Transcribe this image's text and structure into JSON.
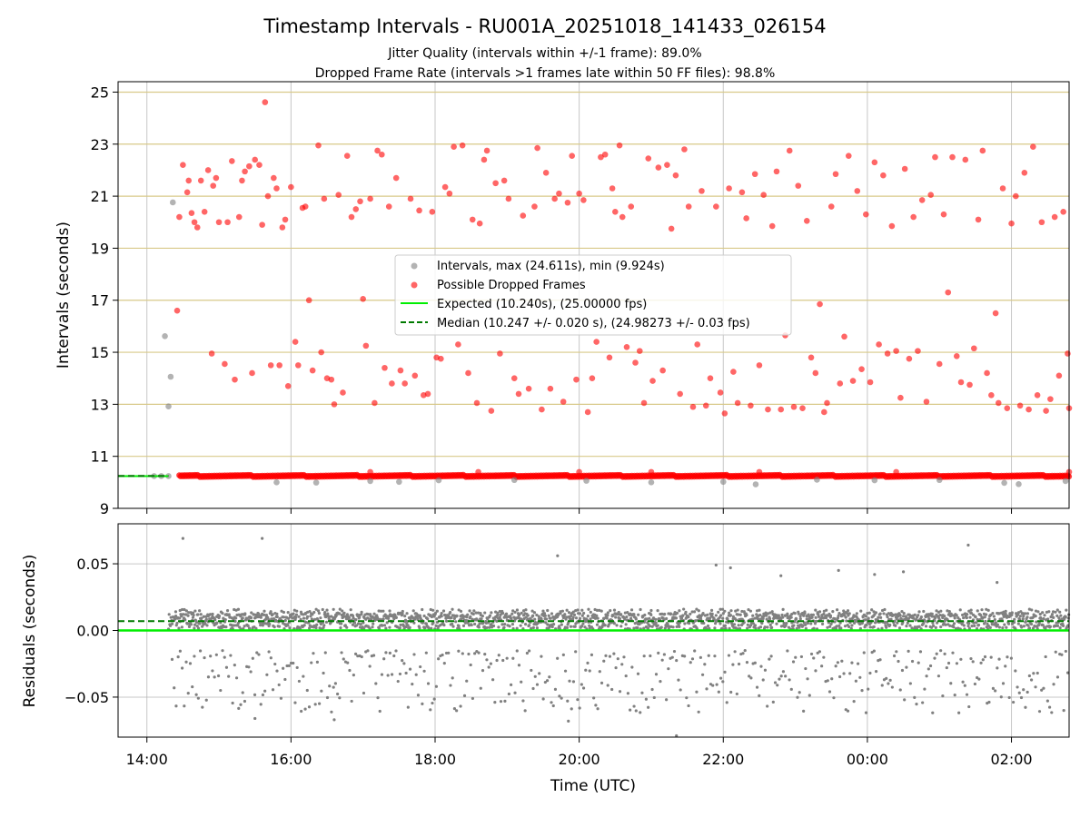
{
  "figure": {
    "title": "Timestamp Intervals - RU001A_20251018_141433_026154",
    "subtitle_1": "Jitter Quality (intervals within +/-1 frame): 89.0%",
    "subtitle_2": "Dropped Frame Rate (intervals >1 frames late within 50 FF files): 98.8%"
  },
  "chart_data": [
    {
      "type": "scatter",
      "panel": "intervals",
      "ylabel": "Intervals (seconds)",
      "ylim": [
        9,
        25.4
      ],
      "yticks": [
        9,
        11,
        13,
        15,
        17,
        19,
        21,
        23,
        25
      ],
      "xlim_hours": [
        13.6,
        26.8
      ],
      "grid": true,
      "legend_position": "center",
      "colors": {
        "intervals": "#808080",
        "dropped": "#ff0000",
        "expected": "#00ee00",
        "median": "#007a00",
        "gridline": "#d8c989"
      },
      "series": [
        {
          "name": "Intervals, max (24.611s), min (9.924s)",
          "max": 24.611,
          "min": 9.924,
          "points": [
            [
              14.25,
              15.62
            ],
            [
              14.3,
              12.92
            ],
            [
              14.33,
              14.06
            ],
            [
              14.36,
              20.76
            ],
            [
              14.3,
              10.24
            ],
            [
              14.2,
              10.24
            ],
            [
              14.1,
              10.24
            ],
            [
              15.8,
              10.0
            ],
            [
              16.35,
              9.99
            ],
            [
              17.1,
              10.05
            ],
            [
              17.5,
              10.02
            ],
            [
              18.05,
              10.08
            ],
            [
              19.1,
              10.09
            ],
            [
              20.1,
              10.06
            ],
            [
              21.0,
              10.0
            ],
            [
              22.0,
              10.02
            ],
            [
              22.45,
              9.924
            ],
            [
              23.3,
              10.1
            ],
            [
              24.1,
              10.08
            ],
            [
              25.0,
              10.09
            ],
            [
              25.9,
              9.98
            ],
            [
              26.1,
              9.93
            ],
            [
              26.75,
              10.05
            ]
          ]
        },
        {
          "name": "Possible Dropped Frames",
          "points": [
            [
              14.42,
              16.6
            ],
            [
              14.45,
              20.2
            ],
            [
              14.5,
              22.2
            ],
            [
              14.56,
              21.15
            ],
            [
              14.58,
              21.6
            ],
            [
              14.62,
              20.35
            ],
            [
              14.66,
              20.0
            ],
            [
              14.7,
              19.8
            ],
            [
              14.75,
              21.6
            ],
            [
              14.8,
              20.4
            ],
            [
              14.85,
              22.0
            ],
            [
              14.9,
              14.95
            ],
            [
              14.92,
              21.4
            ],
            [
              14.96,
              21.7
            ],
            [
              15.0,
              20.0
            ],
            [
              15.08,
              14.55
            ],
            [
              15.12,
              20.0
            ],
            [
              15.18,
              22.35
            ],
            [
              15.22,
              13.95
            ],
            [
              15.28,
              20.2
            ],
            [
              15.32,
              21.6
            ],
            [
              15.36,
              21.95
            ],
            [
              15.42,
              22.15
            ],
            [
              15.46,
              14.2
            ],
            [
              15.5,
              22.4
            ],
            [
              15.56,
              22.2
            ],
            [
              15.6,
              19.9
            ],
            [
              15.64,
              24.611
            ],
            [
              15.68,
              21.0
            ],
            [
              15.72,
              14.5
            ],
            [
              15.76,
              21.7
            ],
            [
              15.8,
              21.3
            ],
            [
              15.84,
              14.5
            ],
            [
              15.88,
              19.8
            ],
            [
              15.92,
              20.1
            ],
            [
              15.96,
              13.7
            ],
            [
              16.0,
              21.35
            ],
            [
              16.06,
              15.4
            ],
            [
              16.1,
              14.5
            ],
            [
              16.16,
              20.55
            ],
            [
              16.2,
              20.6
            ],
            [
              16.25,
              17.0
            ],
            [
              16.3,
              14.3
            ],
            [
              16.38,
              22.95
            ],
            [
              16.42,
              15.0
            ],
            [
              16.46,
              20.9
            ],
            [
              16.5,
              14.0
            ],
            [
              16.56,
              13.95
            ],
            [
              16.6,
              13.0
            ],
            [
              16.66,
              21.05
            ],
            [
              16.72,
              13.45
            ],
            [
              16.78,
              22.55
            ],
            [
              16.84,
              20.2
            ],
            [
              16.9,
              20.5
            ],
            [
              16.96,
              20.8
            ],
            [
              17.0,
              17.05
            ],
            [
              17.04,
              15.25
            ],
            [
              17.1,
              20.9
            ],
            [
              17.16,
              13.05
            ],
            [
              17.2,
              22.75
            ],
            [
              17.26,
              22.6
            ],
            [
              17.3,
              14.4
            ],
            [
              17.36,
              20.6
            ],
            [
              17.4,
              13.8
            ],
            [
              17.46,
              21.7
            ],
            [
              17.52,
              14.3
            ],
            [
              17.58,
              13.8
            ],
            [
              17.66,
              20.9
            ],
            [
              17.72,
              14.1
            ],
            [
              17.78,
              20.45
            ],
            [
              17.84,
              13.35
            ],
            [
              17.9,
              13.4
            ],
            [
              17.96,
              20.4
            ],
            [
              18.02,
              14.8
            ],
            [
              18.08,
              14.75
            ],
            [
              18.14,
              21.35
            ],
            [
              18.2,
              21.1
            ],
            [
              18.26,
              22.9
            ],
            [
              18.32,
              15.3
            ],
            [
              18.38,
              22.95
            ],
            [
              18.46,
              14.2
            ],
            [
              18.52,
              20.1
            ],
            [
              18.58,
              13.05
            ],
            [
              18.62,
              19.95
            ],
            [
              18.68,
              22.4
            ],
            [
              18.72,
              22.75
            ],
            [
              18.78,
              12.75
            ],
            [
              18.84,
              21.5
            ],
            [
              18.9,
              14.95
            ],
            [
              18.96,
              21.6
            ],
            [
              19.02,
              20.9
            ],
            [
              19.1,
              14.0
            ],
            [
              19.16,
              13.4
            ],
            [
              19.22,
              20.25
            ],
            [
              19.3,
              13.6
            ],
            [
              19.38,
              20.6
            ],
            [
              19.42,
              22.85
            ],
            [
              19.48,
              12.8
            ],
            [
              19.54,
              21.9
            ],
            [
              19.6,
              13.6
            ],
            [
              19.66,
              20.9
            ],
            [
              19.72,
              21.1
            ],
            [
              19.78,
              13.1
            ],
            [
              19.84,
              20.75
            ],
            [
              19.9,
              22.55
            ],
            [
              19.96,
              13.95
            ],
            [
              20.0,
              21.1
            ],
            [
              20.06,
              20.85
            ],
            [
              20.12,
              12.7
            ],
            [
              20.18,
              14.0
            ],
            [
              20.24,
              15.4
            ],
            [
              20.3,
              22.5
            ],
            [
              20.36,
              22.6
            ],
            [
              20.42,
              14.8
            ],
            [
              20.46,
              21.3
            ],
            [
              20.5,
              20.4
            ],
            [
              20.56,
              22.95
            ],
            [
              20.6,
              20.2
            ],
            [
              20.66,
              15.2
            ],
            [
              20.72,
              20.6
            ],
            [
              20.78,
              14.6
            ],
            [
              20.84,
              15.05
            ],
            [
              20.9,
              13.05
            ],
            [
              20.96,
              22.45
            ],
            [
              21.02,
              13.9
            ],
            [
              21.1,
              22.1
            ],
            [
              21.16,
              14.3
            ],
            [
              21.22,
              22.2
            ],
            [
              21.28,
              19.75
            ],
            [
              21.34,
              21.8
            ],
            [
              21.4,
              13.4
            ],
            [
              21.46,
              22.8
            ],
            [
              21.52,
              20.6
            ],
            [
              21.58,
              12.9
            ],
            [
              21.64,
              15.3
            ],
            [
              21.7,
              21.2
            ],
            [
              21.76,
              12.95
            ],
            [
              21.82,
              14.0
            ],
            [
              21.9,
              20.6
            ],
            [
              21.96,
              13.45
            ],
            [
              22.02,
              12.65
            ],
            [
              22.08,
              21.3
            ],
            [
              22.14,
              14.25
            ],
            [
              22.2,
              13.05
            ],
            [
              22.26,
              21.15
            ],
            [
              22.32,
              20.15
            ],
            [
              22.38,
              12.95
            ],
            [
              22.44,
              21.85
            ],
            [
              22.5,
              14.5
            ],
            [
              22.56,
              21.05
            ],
            [
              22.62,
              12.8
            ],
            [
              22.68,
              19.85
            ],
            [
              22.74,
              21.95
            ],
            [
              22.8,
              12.8
            ],
            [
              22.86,
              15.65
            ],
            [
              22.92,
              22.75
            ],
            [
              22.98,
              12.9
            ],
            [
              23.04,
              21.4
            ],
            [
              23.1,
              12.85
            ],
            [
              23.16,
              20.05
            ],
            [
              23.22,
              14.8
            ],
            [
              23.28,
              14.2
            ],
            [
              23.34,
              16.85
            ],
            [
              23.4,
              12.7
            ],
            [
              23.44,
              13.05
            ],
            [
              23.5,
              20.6
            ],
            [
              23.56,
              21.85
            ],
            [
              23.62,
              13.8
            ],
            [
              23.68,
              15.6
            ],
            [
              23.74,
              22.55
            ],
            [
              23.8,
              13.9
            ],
            [
              23.86,
              21.2
            ],
            [
              23.92,
              14.35
            ],
            [
              23.98,
              20.3
            ],
            [
              24.04,
              13.85
            ],
            [
              24.1,
              22.3
            ],
            [
              24.16,
              15.3
            ],
            [
              24.22,
              21.8
            ],
            [
              24.28,
              14.95
            ],
            [
              24.34,
              19.85
            ],
            [
              24.4,
              15.05
            ],
            [
              24.46,
              13.25
            ],
            [
              24.52,
              22.05
            ],
            [
              24.58,
              14.75
            ],
            [
              24.64,
              20.2
            ],
            [
              24.7,
              15.05
            ],
            [
              24.76,
              20.85
            ],
            [
              24.82,
              13.1
            ],
            [
              24.88,
              21.05
            ],
            [
              24.94,
              22.5
            ],
            [
              25.0,
              14.55
            ],
            [
              25.06,
              20.3
            ],
            [
              25.12,
              17.3
            ],
            [
              25.18,
              22.5
            ],
            [
              25.24,
              14.85
            ],
            [
              25.3,
              13.85
            ],
            [
              25.36,
              22.4
            ],
            [
              25.42,
              13.75
            ],
            [
              25.48,
              15.15
            ],
            [
              25.54,
              20.1
            ],
            [
              25.6,
              22.75
            ],
            [
              25.66,
              14.2
            ],
            [
              25.72,
              13.35
            ],
            [
              25.78,
              16.5
            ],
            [
              25.82,
              13.05
            ],
            [
              25.88,
              21.3
            ],
            [
              25.94,
              12.85
            ],
            [
              26.0,
              19.95
            ],
            [
              26.06,
              21.0
            ],
            [
              26.12,
              12.95
            ],
            [
              26.18,
              21.9
            ],
            [
              26.24,
              12.8
            ],
            [
              26.3,
              22.9
            ],
            [
              26.36,
              13.35
            ],
            [
              26.42,
              20.0
            ],
            [
              26.48,
              12.75
            ],
            [
              26.54,
              13.2
            ],
            [
              26.6,
              20.2
            ],
            [
              26.66,
              14.1
            ],
            [
              26.72,
              20.4
            ],
            [
              26.78,
              14.95
            ],
            [
              26.8,
              12.85
            ]
          ]
        },
        {
          "name": "Expected (10.240s), (25.00000 fps)",
          "value": 10.24
        },
        {
          "name": "Median (10.247 +/- 0.020 s), (24.98273 +/- 0.03 fps)",
          "value": 10.247
        }
      ]
    },
    {
      "type": "scatter",
      "panel": "residuals",
      "ylabel": "Residuals (seconds)",
      "xlabel": "Time (UTC)",
      "ylim": [
        -0.08,
        0.08
      ],
      "yticks": [
        -0.05,
        0.0,
        0.05
      ],
      "ytick_labels": [
        "−0.05",
        "0.00",
        "0.05"
      ],
      "xticks": [
        14,
        16,
        18,
        20,
        22,
        24,
        26
      ],
      "xtick_labels": [
        "14:00",
        "16:00",
        "18:00",
        "20:00",
        "22:00",
        "00:00",
        "02:00"
      ],
      "grid": true,
      "expected_residual": 0.0,
      "median_residual": 0.007,
      "cluster_center": 0.007,
      "outliers": [
        [
          14.5,
          0.069
        ],
        [
          15.6,
          0.069
        ],
        [
          19.7,
          0.056
        ],
        [
          21.9,
          0.049
        ],
        [
          22.1,
          0.047
        ],
        [
          22.8,
          0.041
        ],
        [
          23.6,
          0.045
        ],
        [
          24.1,
          0.042
        ],
        [
          24.5,
          0.044
        ],
        [
          25.4,
          0.064
        ],
        [
          25.8,
          0.036
        ],
        [
          19.85,
          -0.068
        ],
        [
          21.35,
          -0.079
        ],
        [
          16.6,
          -0.067
        ],
        [
          15.5,
          -0.066
        ]
      ]
    }
  ]
}
